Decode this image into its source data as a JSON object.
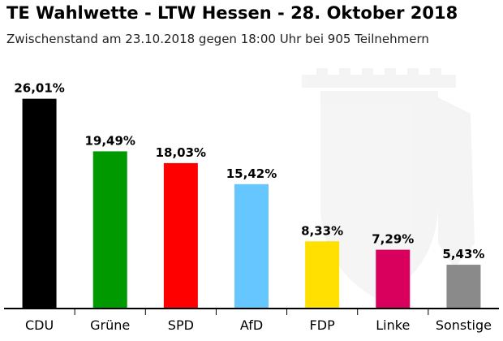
{
  "chart_data": {
    "type": "bar",
    "title": "TE Wahlwette - LTW Hessen - 28. Oktober 2018",
    "subtitle": "Zwischenstand am 23.10.2018 gegen 18:00 Uhr bei 905 Teilnehmern",
    "categories": [
      "CDU",
      "Grüne",
      "SPD",
      "AfD",
      "FDP",
      "Linke",
      "Sonstige"
    ],
    "values": [
      26.01,
      19.49,
      18.03,
      15.42,
      8.33,
      7.29,
      5.43
    ],
    "value_labels": [
      "26,01%",
      "19,49%",
      "18,03%",
      "15,42%",
      "8,33%",
      "7,29%",
      "5,43%"
    ],
    "colors": [
      "#000000",
      "#009a00",
      "#ff0000",
      "#66c6ff",
      "#ffe000",
      "#d8005c",
      "#8a8a8a"
    ],
    "ylim": [
      0,
      30
    ],
    "xlabel": "",
    "ylabel": "",
    "grid": false,
    "legend": "none"
  }
}
